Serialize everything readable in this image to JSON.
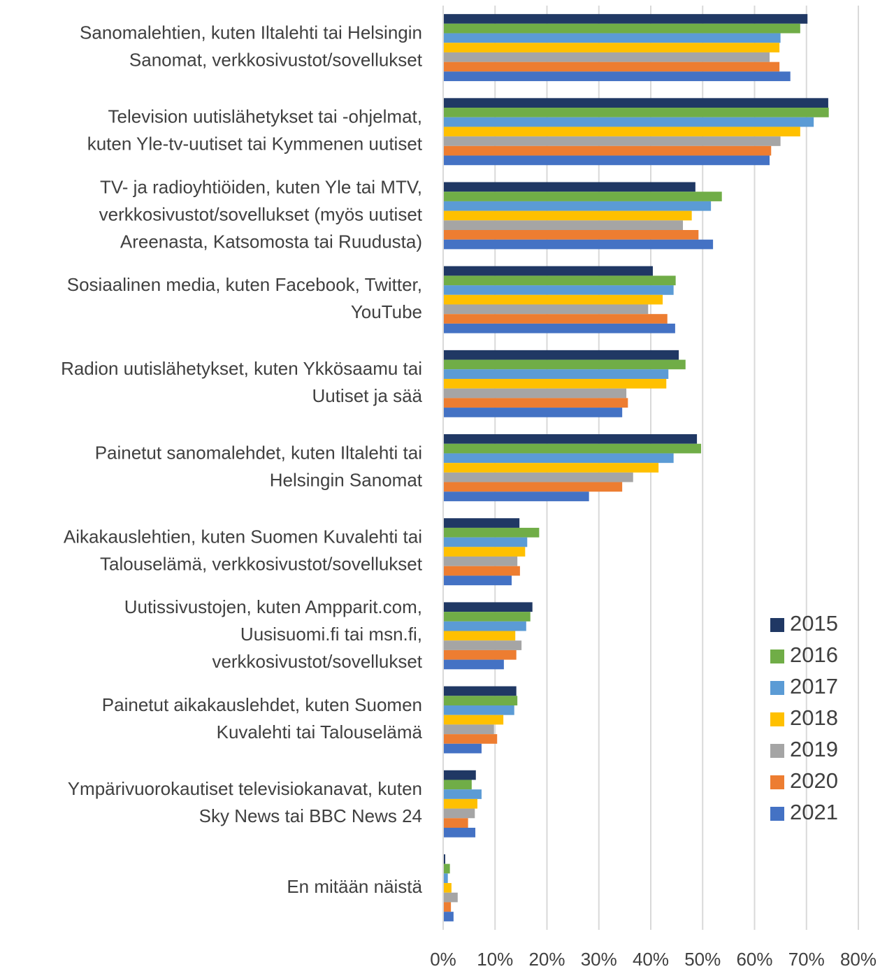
{
  "chart_data": {
    "type": "barh",
    "categories": [
      [
        "Sanomalehtien, kuten Iltalehti tai Helsingin",
        "Sanomat, verkkosivustot/sovellukset"
      ],
      [
        "Television uutislähetykset tai -ohjelmat,",
        "kuten Yle-tv-uutiset tai Kymmenen uutiset"
      ],
      [
        "TV- ja radioyhtiöiden, kuten Yle tai MTV,",
        "verkkosivustot/sovellukset (myös uutiset",
        "Areenasta, Katsomosta tai Ruudusta)"
      ],
      [
        "Sosiaalinen media, kuten Facebook, Twitter,",
        "YouTube"
      ],
      [
        "Radion uutislähetykset, kuten Ykkösaamu tai",
        "Uutiset ja sää"
      ],
      [
        "Painetut sanomalehdet, kuten Iltalehti tai",
        "Helsingin Sanomat"
      ],
      [
        "Aikakauslehtien, kuten Suomen Kuvalehti tai",
        "Talouselämä, verkkosivustot/sovellukset"
      ],
      [
        "Uutissivustojen, kuten Ampparit.com,",
        "Uusisuomi.fi tai msn.fi,",
        "verkkosivustot/sovellukset"
      ],
      [
        "Painetut aikakauslehdet, kuten Suomen",
        "Kuvalehti tai Talouselämä"
      ],
      [
        "Ympärivuorokautiset televisiokanavat, kuten",
        "Sky News tai BBC News 24"
      ],
      [
        "En mitään näistä"
      ]
    ],
    "series": [
      {
        "name": "2015",
        "color": "#203864",
        "values": [
          70.2,
          74.2,
          48.6,
          40.4,
          45.4,
          48.9,
          14.7,
          17.2,
          14.1,
          6.3,
          0.4
        ]
      },
      {
        "name": "2016",
        "color": "#70ad47",
        "values": [
          68.8,
          74.3,
          53.7,
          44.8,
          46.7,
          49.7,
          18.5,
          16.8,
          14.3,
          5.5,
          1.3
        ]
      },
      {
        "name": "2017",
        "color": "#5b9bd5",
        "values": [
          65.0,
          71.4,
          51.6,
          44.4,
          43.4,
          44.4,
          16.2,
          16.0,
          13.7,
          7.4,
          0.9
        ]
      },
      {
        "name": "2018",
        "color": "#ffc000",
        "values": [
          64.8,
          68.8,
          47.9,
          42.3,
          43.0,
          41.5,
          15.8,
          13.9,
          11.6,
          6.6,
          1.6
        ]
      },
      {
        "name": "2019",
        "color": "#a5a5a5",
        "values": [
          62.9,
          65.0,
          46.2,
          39.5,
          35.3,
          36.6,
          14.3,
          15.1,
          9.8,
          6.1,
          2.8
        ]
      },
      {
        "name": "2020",
        "color": "#ed7d31",
        "values": [
          64.8,
          63.2,
          49.2,
          43.2,
          35.6,
          34.5,
          14.8,
          14.1,
          10.4,
          4.8,
          1.5
        ]
      },
      {
        "name": "2021",
        "color": "#4472c4",
        "values": [
          66.9,
          62.9,
          52.0,
          44.7,
          34.5,
          28.1,
          13.2,
          11.7,
          7.4,
          6.2,
          2.0
        ]
      }
    ],
    "xlim": [
      0,
      80
    ],
    "xticks": [
      {
        "value": 0,
        "label": "0%"
      },
      {
        "value": 10,
        "label": "10%"
      },
      {
        "value": 20,
        "label": "20%"
      },
      {
        "value": 30,
        "label": "30%"
      },
      {
        "value": 40,
        "label": "40%"
      },
      {
        "value": 50,
        "label": "50%"
      },
      {
        "value": 60,
        "label": "60%"
      },
      {
        "value": 70,
        "label": "70%"
      },
      {
        "value": 80,
        "label": "80%"
      }
    ],
    "grid": true,
    "legend": "lower-right"
  }
}
